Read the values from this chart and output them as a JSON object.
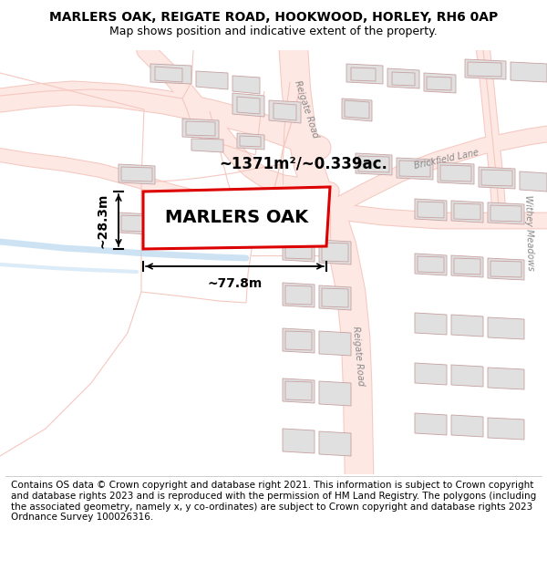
{
  "title": "MARLERS OAK, REIGATE ROAD, HOOKWOOD, HORLEY, RH6 0AP",
  "subtitle": "Map shows position and indicative extent of the property.",
  "footer": "Contains OS data © Crown copyright and database right 2021. This information is subject to Crown copyright and database rights 2023 and is reproduced with the permission of HM Land Registry. The polygons (including the associated geometry, namely x, y co-ordinates) are subject to Crown copyright and database rights 2023 Ordnance Survey 100026316.",
  "map_bg": "#ffffff",
  "road_color": "#f5c8c0",
  "road_lw": 1.0,
  "road_fill": "#fde8e4",
  "building_fill": "#e0e0e0",
  "building_stroke": "#c8a0a0",
  "building_lw": 0.6,
  "highlight_color": "#dd0000",
  "water_color": "#b8d8f0",
  "dim_color": "#111111",
  "property_label": "MARLERS OAK",
  "area_label": "~1371m²/~0.339ac.",
  "width_label": "~77.8m",
  "height_label": "~28.3m",
  "title_fontsize": 10,
  "subtitle_fontsize": 9,
  "footer_fontsize": 7.5,
  "label_fontsize": 14,
  "dim_fontsize": 10,
  "area_fontsize": 12
}
